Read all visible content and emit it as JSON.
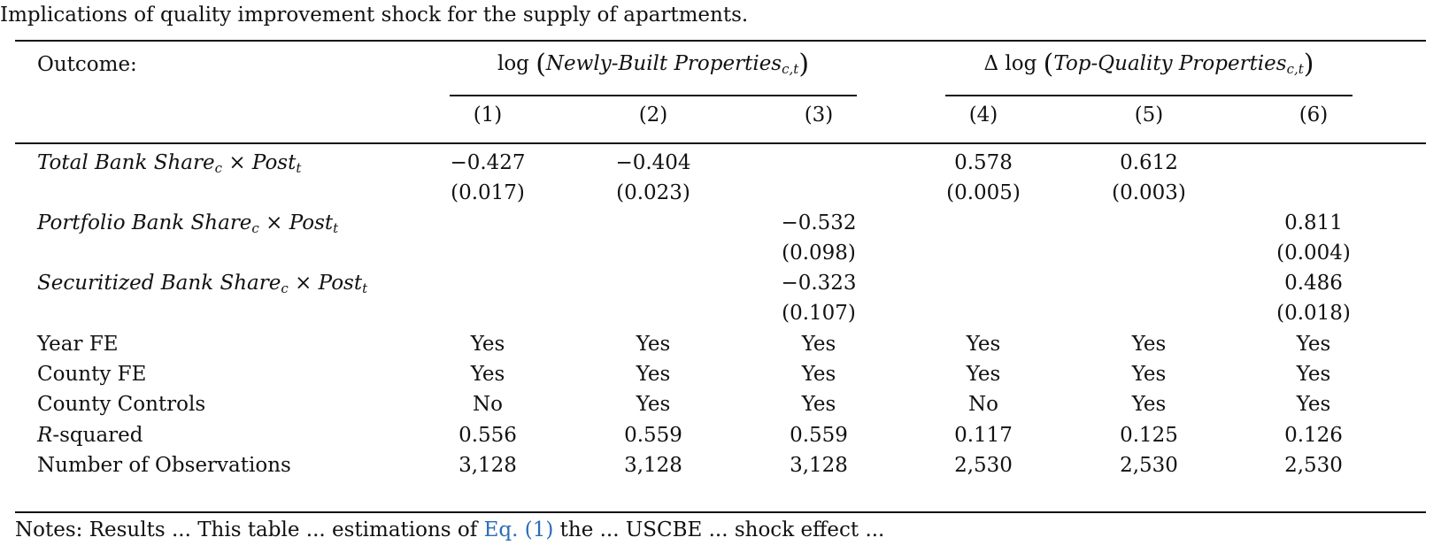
{
  "caption": "Implications of quality improvement shock for the supply of apartments.",
  "header": {
    "outcome_label": "Outcome:",
    "group1": {
      "prefix": "log",
      "var": "Newly-Built Properties",
      "sub": "c,t"
    },
    "group2": {
      "prefix": "Δ log",
      "var": "Top-Quality Properties",
      "sub": "c,t"
    },
    "columns": [
      "(1)",
      "(2)",
      "(3)",
      "(4)",
      "(5)",
      "(6)"
    ]
  },
  "rows": [
    {
      "var": "Total Bank Share",
      "sub": "c",
      "times": "×",
      "post": "Post",
      "post_sub": "t",
      "coef": [
        "−0.427",
        "−0.404",
        "",
        "0.578",
        "0.612",
        ""
      ],
      "se": [
        "(0.017)",
        "(0.023)",
        "",
        "(0.005)",
        "(0.003)",
        ""
      ]
    },
    {
      "var": "Portfolio Bank Share",
      "sub": "c",
      "times": "×",
      "post": "Post",
      "post_sub": "t",
      "coef": [
        "",
        "",
        "−0.532",
        "",
        "",
        "0.811"
      ],
      "se": [
        "",
        "",
        "(0.098)",
        "",
        "",
        "(0.004)"
      ]
    },
    {
      "var": "Securitized Bank Share",
      "sub": "c",
      "times": "×",
      "post": "Post",
      "post_sub": "t",
      "coef": [
        "",
        "",
        "−0.323",
        "",
        "",
        "0.486"
      ],
      "se": [
        "",
        "",
        "(0.107)",
        "",
        "",
        "(0.018)"
      ]
    }
  ],
  "controls": [
    {
      "label": "Year FE",
      "values": [
        "Yes",
        "Yes",
        "Yes",
        "Yes",
        "Yes",
        "Yes"
      ]
    },
    {
      "label": "County FE",
      "values": [
        "Yes",
        "Yes",
        "Yes",
        "Yes",
        "Yes",
        "Yes"
      ]
    },
    {
      "label": "County Controls",
      "values": [
        "No",
        "Yes",
        "Yes",
        "No",
        "Yes",
        "Yes"
      ]
    }
  ],
  "rsquared": {
    "label_italic": "R",
    "label_rest": "-squared",
    "values": [
      "0.556",
      "0.559",
      "0.559",
      "0.117",
      "0.125",
      "0.126"
    ]
  },
  "observations": {
    "label": "Number of Observations",
    "values": [
      "3,128",
      "3,128",
      "3,128",
      "2,530",
      "2,530",
      "2,530"
    ]
  },
  "note": {
    "start": "Notes: Results ... This table ... estimations of",
    "link": "Eq. (1)",
    "end": "the ... USCBE ... shock effect ..."
  }
}
